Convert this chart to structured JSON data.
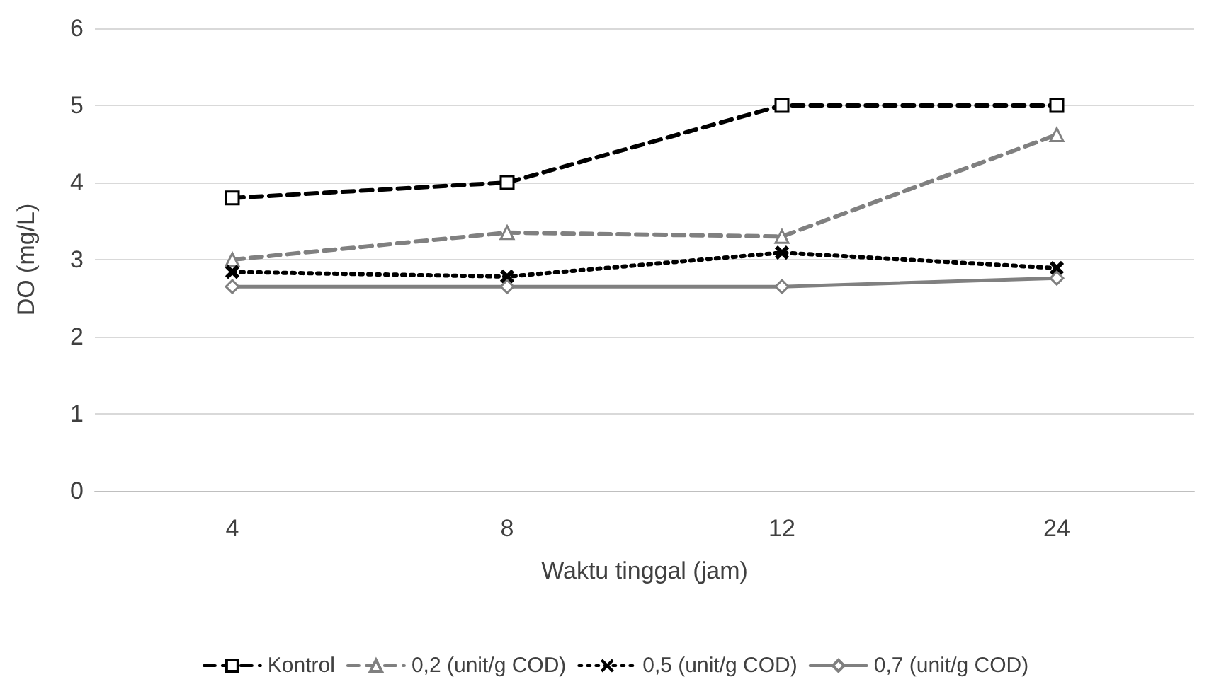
{
  "chart_data": {
    "type": "line",
    "xlabel": "Waktu tinggal (jam)",
    "ylabel": "DO (mg/L)",
    "categories": [
      "4",
      "8",
      "12",
      "24"
    ],
    "series": [
      {
        "name": "Kontrol",
        "color": "#000000",
        "values": [
          3.8,
          4.0,
          5.0,
          5.0
        ],
        "line_style": "dashed",
        "marker": "square"
      },
      {
        "name": "0,2 (unit/g COD)",
        "color": "#808080",
        "values": [
          3.0,
          3.35,
          3.3,
          4.62
        ],
        "line_style": "dashed",
        "marker": "triangle"
      },
      {
        "name": "0,5 (unit/g COD)",
        "color": "#000000",
        "values": [
          2.84,
          2.78,
          3.09,
          2.89
        ],
        "line_style": "dotted",
        "marker": "cross"
      },
      {
        "name": "0,7 (unit/g COD)",
        "color": "#808080",
        "values": [
          2.65,
          2.65,
          2.65,
          2.76
        ],
        "line_style": "solid",
        "marker": "diamond"
      }
    ],
    "ylim": [
      0,
      6
    ],
    "yticks": [
      0,
      1,
      2,
      3,
      4,
      5,
      6
    ],
    "grid": "y",
    "legend": "bottom"
  }
}
